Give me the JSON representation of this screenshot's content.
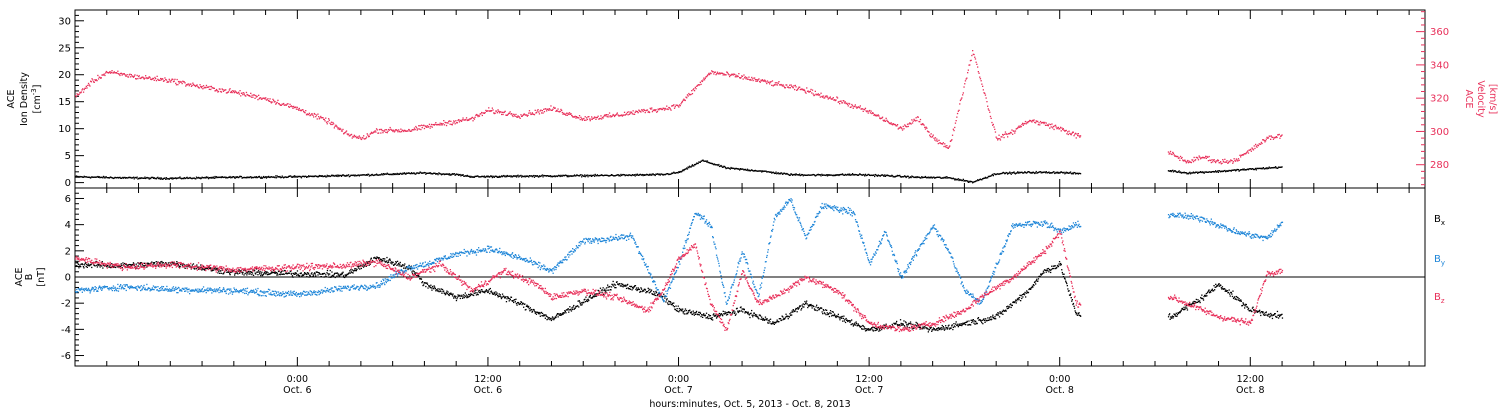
{
  "figure": {
    "xlabel": "hours:minutes, Oct.  5, 2013 - Oct.  8, 2013",
    "x_ticks": [
      {
        "hour": 24,
        "label": "0:00",
        "sublabel": "Oct. 6"
      },
      {
        "hour": 36,
        "label": "12:00",
        "sublabel": "Oct. 6"
      },
      {
        "hour": 48,
        "label": "0:00",
        "sublabel": "Oct. 7"
      },
      {
        "hour": 60,
        "label": "12:00",
        "sublabel": "Oct. 7"
      },
      {
        "hour": 72,
        "label": "0:00",
        "sublabel": "Oct. 8"
      },
      {
        "hour": 84,
        "label": "12:00",
        "sublabel": "Oct. 8"
      }
    ]
  },
  "colors": {
    "black": "#000000",
    "red": "#e8305a",
    "blue": "#1f86d8"
  },
  "chart_data": [
    {
      "type": "scatter",
      "panel": "top",
      "x_unit": "hours since Oct. 5 00:00",
      "xlim": [
        10,
        95
      ],
      "ylabel_lines": [
        "ACE",
        "Ion Density"
      ],
      "ylabel_unit": "[cm",
      "ylabel_unit_sup": "-3",
      "ylabel_unit_end": "]",
      "ylim": [
        -1,
        32
      ],
      "yticks": [
        0,
        5,
        10,
        15,
        20,
        25,
        30
      ],
      "y2label_lines": [
        "ACE",
        "Velocity"
      ],
      "y2label_unit": "[km/s]",
      "y2lim": [
        266,
        373
      ],
      "y2ticks": [
        280,
        300,
        320,
        340,
        360
      ],
      "series": [
        {
          "axis": "left",
          "color": "black",
          "points": [
            [
              10,
              1.2
            ],
            [
              13,
              1.0
            ],
            [
              16,
              0.9
            ],
            [
              20,
              1.1
            ],
            [
              24,
              1.2
            ],
            [
              28,
              1.5
            ],
            [
              32,
              1.9
            ],
            [
              34,
              1.6
            ],
            [
              35,
              1.2
            ],
            [
              38,
              1.3
            ],
            [
              42,
              1.4
            ],
            [
              45,
              1.5
            ],
            [
              47,
              1.6
            ],
            [
              48,
              2.0
            ],
            [
              49.5,
              4.2
            ],
            [
              51,
              2.8
            ],
            [
              53,
              2.3
            ],
            [
              55,
              1.6
            ],
            [
              57,
              1.5
            ],
            [
              59,
              1.6
            ],
            [
              61,
              1.4
            ],
            [
              63,
              1.1
            ],
            [
              65,
              1.0
            ],
            [
              66.5,
              0.2
            ],
            [
              68,
              1.8
            ],
            [
              70,
              2.0
            ],
            [
              72,
              2.0
            ],
            [
              73,
              1.8
            ],
            [
              79,
              2.3
            ],
            [
              80,
              1.9
            ],
            [
              82,
              2.2
            ],
            [
              84,
              2.6
            ],
            [
              86,
              3.0
            ]
          ]
        },
        {
          "axis": "right",
          "color": "red",
          "points": [
            [
              10,
              321
            ],
            [
              11,
              330
            ],
            [
              12,
              336
            ],
            [
              14,
              333
            ],
            [
              16,
              331
            ],
            [
              18,
              327
            ],
            [
              20,
              324
            ],
            [
              22,
              320
            ],
            [
              24,
              314
            ],
            [
              26,
              306
            ],
            [
              27,
              299
            ],
            [
              28,
              296
            ],
            [
              29,
              301
            ],
            [
              31,
              301
            ],
            [
              32,
              303
            ],
            [
              33,
              305
            ],
            [
              35,
              308
            ],
            [
              36,
              313
            ],
            [
              38,
              310
            ],
            [
              40,
              314
            ],
            [
              42,
              308
            ],
            [
              44,
              310
            ],
            [
              46,
              313
            ],
            [
              47,
              314
            ],
            [
              48,
              316
            ],
            [
              50,
              336
            ],
            [
              52,
              333
            ],
            [
              54,
              329
            ],
            [
              56,
              325
            ],
            [
              58,
              319
            ],
            [
              60,
              312
            ],
            [
              61,
              307
            ],
            [
              62,
              302
            ],
            [
              63,
              308
            ],
            [
              64,
              297
            ],
            [
              65,
              290
            ],
            [
              66.5,
              349
            ],
            [
              68,
              296
            ],
            [
              69,
              300
            ],
            [
              70,
              307
            ],
            [
              71,
              305
            ],
            [
              72,
              302
            ],
            [
              73,
              298
            ],
            [
              79,
              287
            ],
            [
              80,
              282
            ],
            [
              81,
              285
            ],
            [
              82,
              282
            ],
            [
              83,
              283
            ],
            [
              84,
              289
            ],
            [
              85,
              296
            ],
            [
              86,
              298
            ]
          ]
        }
      ]
    },
    {
      "type": "scatter",
      "panel": "bottom",
      "x_unit": "hours since Oct. 5 00:00",
      "xlim": [
        10,
        95
      ],
      "ylabel_lines": [
        "ACE",
        "B"
      ],
      "ylabel_unit": "[nT]",
      "ylim": [
        -6.8,
        6.8
      ],
      "yticks": [
        -6,
        -4,
        -2,
        0,
        2,
        4,
        6
      ],
      "legend": [
        "B",
        "B",
        "B"
      ],
      "legend_subscripts": [
        "x",
        "y",
        "z"
      ],
      "series": [
        {
          "name": "B",
          "color": "black",
          "points": [
            [
              10,
              1.0
            ],
            [
              13,
              0.9
            ],
            [
              16,
              1.1
            ],
            [
              20,
              0.4
            ],
            [
              24,
              0.3
            ],
            [
              27,
              0.2
            ],
            [
              29,
              1.5
            ],
            [
              31,
              0.8
            ],
            [
              32,
              -0.5
            ],
            [
              34,
              -1.5
            ],
            [
              36,
              -1.0
            ],
            [
              38,
              -2.0
            ],
            [
              40,
              -3.2
            ],
            [
              42,
              -1.8
            ],
            [
              44,
              -0.5
            ],
            [
              46,
              -1.0
            ],
            [
              47,
              -1.5
            ],
            [
              48,
              -2.5
            ],
            [
              50,
              -3.0
            ],
            [
              52,
              -2.5
            ],
            [
              54,
              -3.5
            ],
            [
              56,
              -2.0
            ],
            [
              58,
              -3.0
            ],
            [
              60,
              -4.0
            ],
            [
              62,
              -3.5
            ],
            [
              64,
              -4.0
            ],
            [
              66,
              -3.5
            ],
            [
              68,
              -3.0
            ],
            [
              70,
              -1.0
            ],
            [
              71,
              0.5
            ],
            [
              72,
              1.0
            ],
            [
              73,
              -2.8
            ],
            [
              79,
              -3.0
            ],
            [
              81,
              -1.5
            ],
            [
              82,
              -0.5
            ],
            [
              84,
              -2.5
            ],
            [
              86,
              -3.0
            ]
          ]
        },
        {
          "name": "B",
          "color": "blue",
          "points": [
            [
              10,
              -1.0
            ],
            [
              13,
              -0.7
            ],
            [
              16,
              -0.9
            ],
            [
              20,
              -1.0
            ],
            [
              24,
              -1.3
            ],
            [
              27,
              -0.8
            ],
            [
              29,
              -0.6
            ],
            [
              31,
              0.8
            ],
            [
              32,
              1.0
            ],
            [
              34,
              1.8
            ],
            [
              36,
              2.2
            ],
            [
              38,
              1.5
            ],
            [
              40,
              0.5
            ],
            [
              42,
              2.8
            ],
            [
              44,
              3.0
            ],
            [
              45,
              3.2
            ],
            [
              47,
              -1.8
            ],
            [
              48,
              1.0
            ],
            [
              49,
              5.0
            ],
            [
              50,
              4.0
            ],
            [
              51,
              -2.0
            ],
            [
              52,
              2.0
            ],
            [
              53,
              -1.5
            ],
            [
              54,
              4.5
            ],
            [
              55,
              6.0
            ],
            [
              56,
              3.0
            ],
            [
              57,
              5.5
            ],
            [
              59,
              5.0
            ],
            [
              60,
              1.0
            ],
            [
              61,
              3.5
            ],
            [
              62,
              0.0
            ],
            [
              64,
              4.0
            ],
            [
              65,
              2.0
            ],
            [
              66,
              -1.0
            ],
            [
              67,
              -2.0
            ],
            [
              68,
              1.0
            ],
            [
              69,
              4.0
            ],
            [
              71,
              4.2
            ],
            [
              72,
              3.5
            ],
            [
              73,
              4.0
            ],
            [
              79,
              4.8
            ],
            [
              81,
              4.5
            ],
            [
              83,
              3.5
            ],
            [
              85,
              3.0
            ],
            [
              86,
              4.2
            ]
          ]
        },
        {
          "name": "B",
          "color": "red",
          "points": [
            [
              10,
              1.5
            ],
            [
              13,
              0.8
            ],
            [
              16,
              1.0
            ],
            [
              20,
              0.6
            ],
            [
              24,
              0.8
            ],
            [
              27,
              0.9
            ],
            [
              29,
              1.2
            ],
            [
              31,
              0.0
            ],
            [
              33,
              1.0
            ],
            [
              35,
              -1.0
            ],
            [
              37,
              0.5
            ],
            [
              39,
              -0.5
            ],
            [
              40,
              -1.5
            ],
            [
              42,
              -1.0
            ],
            [
              44,
              -1.5
            ],
            [
              46,
              -2.5
            ],
            [
              47,
              -1.0
            ],
            [
              48,
              1.5
            ],
            [
              49,
              2.5
            ],
            [
              50,
              -2.0
            ],
            [
              51,
              -4.0
            ],
            [
              52,
              0.5
            ],
            [
              53,
              -2.0
            ],
            [
              54,
              -1.5
            ],
            [
              56,
              0.0
            ],
            [
              58,
              -1.0
            ],
            [
              60,
              -3.5
            ],
            [
              62,
              -4.0
            ],
            [
              64,
              -3.5
            ],
            [
              66,
              -2.5
            ],
            [
              67,
              -1.5
            ],
            [
              69,
              0.0
            ],
            [
              70,
              1.0
            ],
            [
              71,
              2.0
            ],
            [
              72,
              3.5
            ],
            [
              73,
              -2.0
            ],
            [
              79,
              -1.5
            ],
            [
              81,
              -2.5
            ],
            [
              82,
              -3.0
            ],
            [
              84,
              -3.5
            ],
            [
              85,
              0.3
            ],
            [
              86,
              0.6
            ]
          ]
        }
      ]
    }
  ]
}
